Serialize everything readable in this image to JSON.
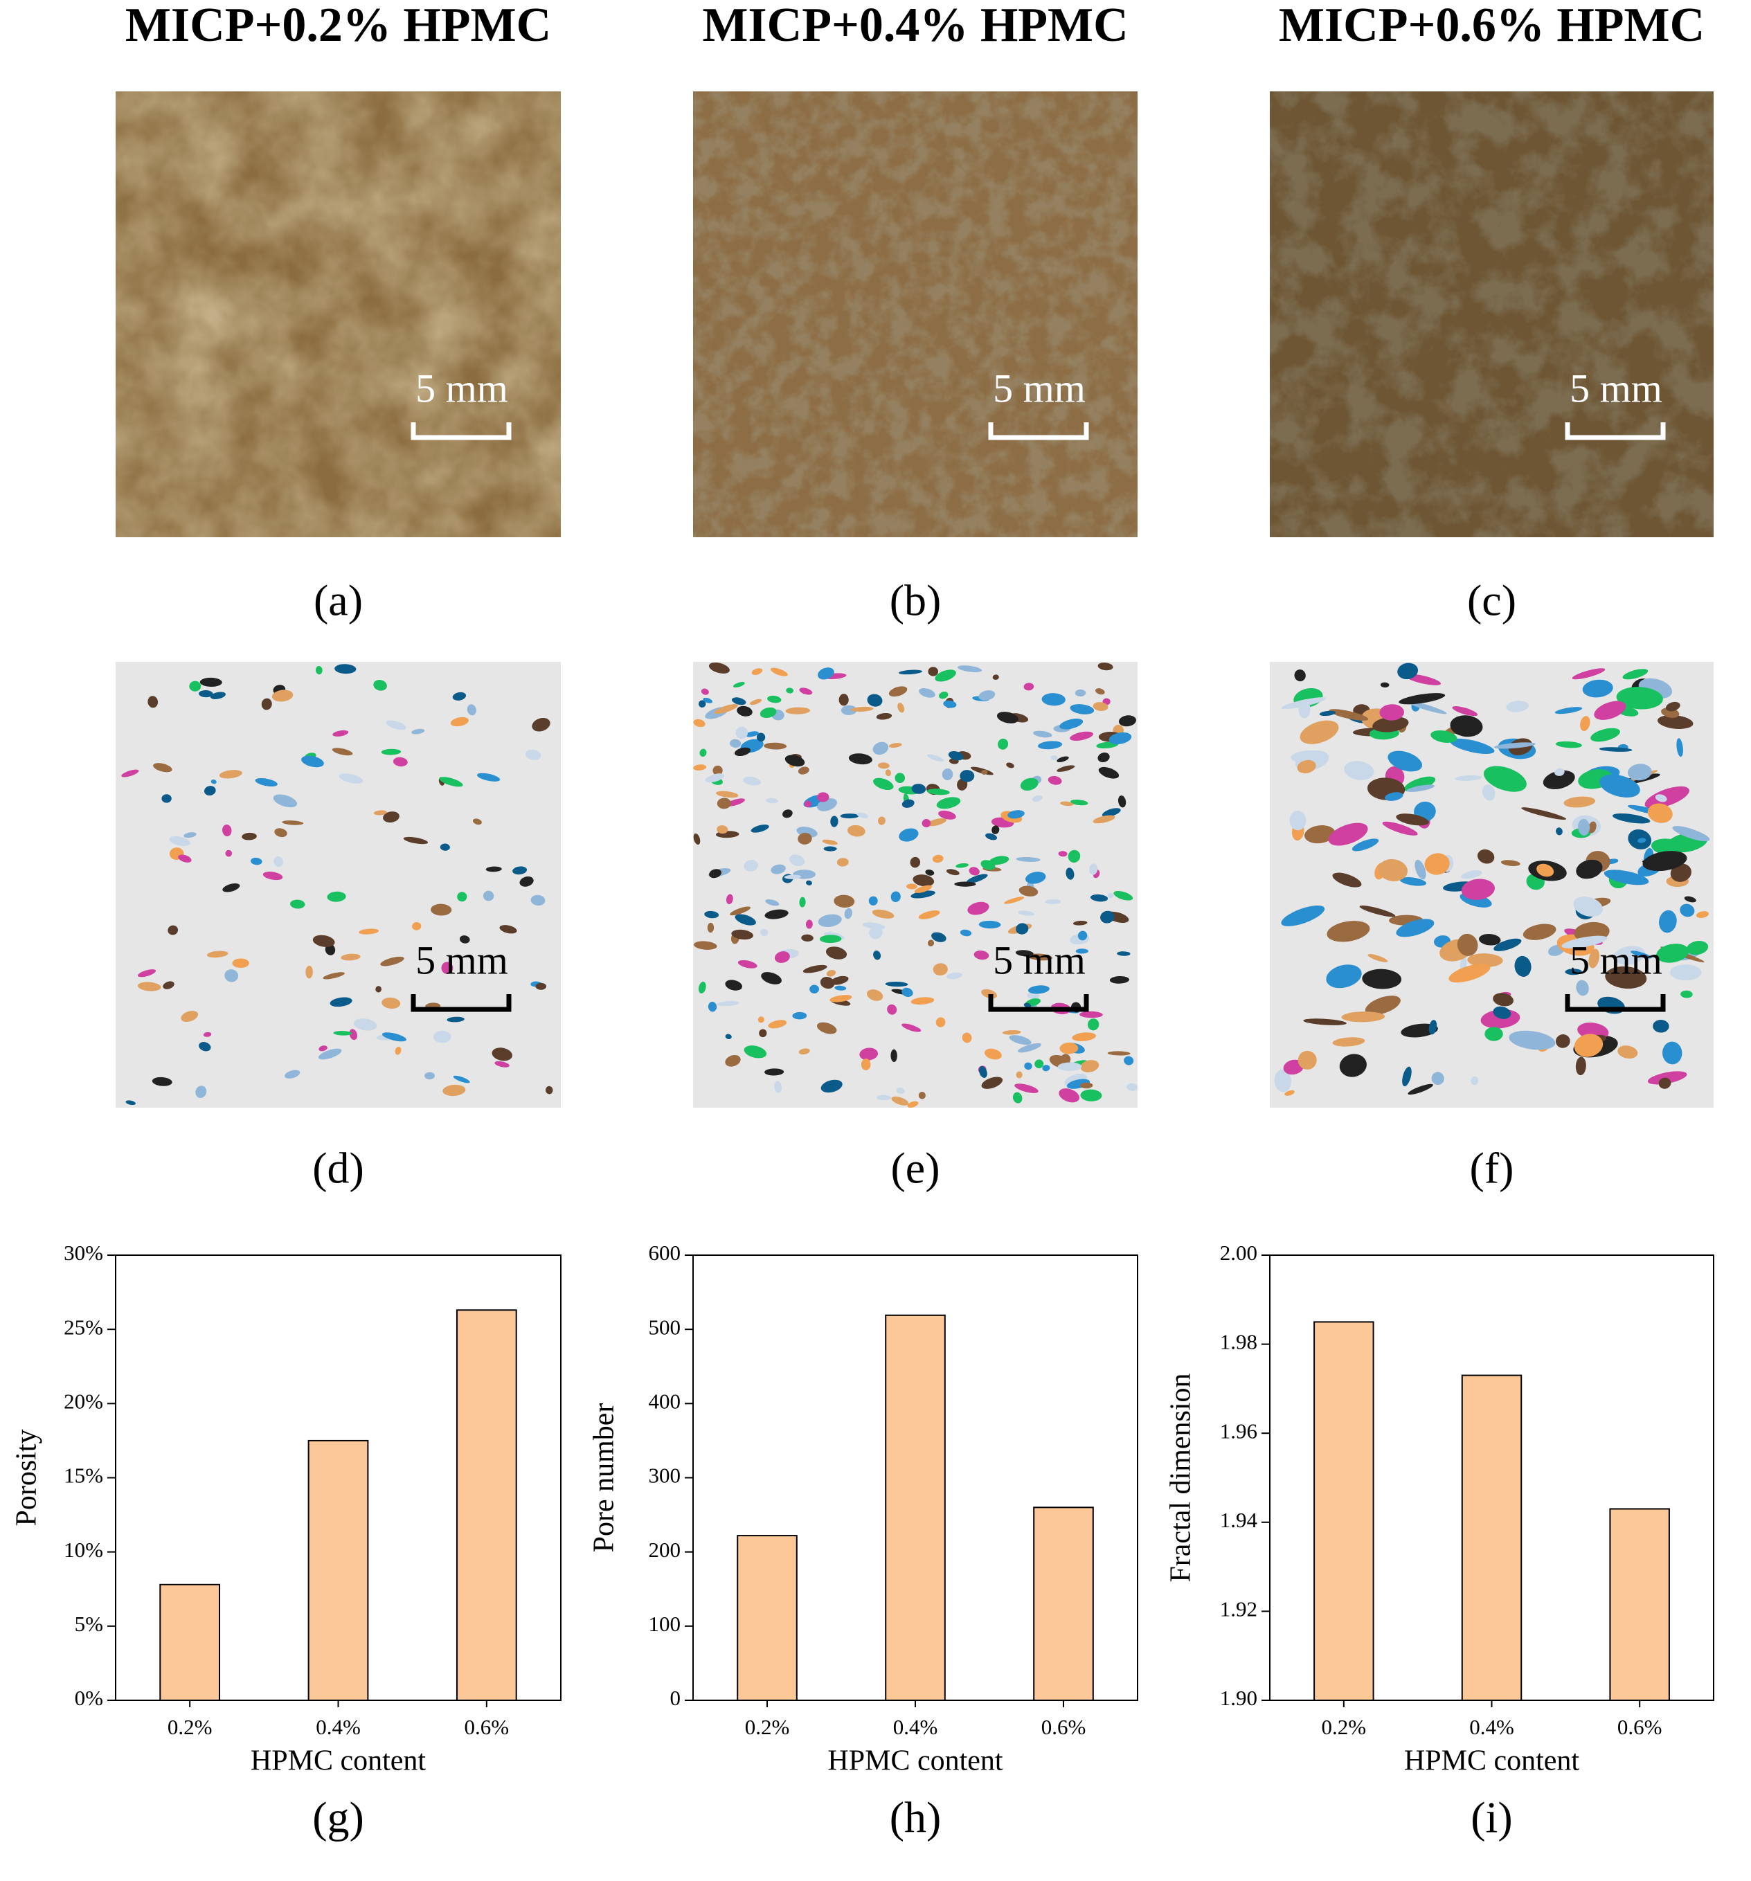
{
  "titles": [
    "MICP+0.2% HPMC",
    "MICP+0.4% HPMC",
    "MICP+0.6% HPMC"
  ],
  "panel_labels": [
    "(a)",
    "(b)",
    "(c)",
    "(d)",
    "(e)",
    "(f)",
    "(g)",
    "(h)",
    "(i)"
  ],
  "scale_bars": [
    "5 mm",
    "5 mm",
    "5 mm",
    "5 mm",
    "5 mm",
    "5 mm"
  ],
  "chart_data": [
    {
      "type": "bar",
      "categories": [
        "0.2%",
        "0.4%",
        "0.6%"
      ],
      "values": [
        7.8,
        17.5,
        26.3
      ],
      "color": "#fdc897",
      "xlabel": "HPMC content",
      "ylabel": "Porosity",
      "ylim": [
        0,
        30
      ],
      "yticks": [
        {
          "value": 0,
          "label": "0%"
        },
        {
          "value": 5,
          "label": "5%"
        },
        {
          "value": 10,
          "label": "10%"
        },
        {
          "value": 15,
          "label": "15%"
        },
        {
          "value": 20,
          "label": "20%"
        },
        {
          "value": 25,
          "label": "25%"
        },
        {
          "value": 30,
          "label": "30%"
        }
      ]
    },
    {
      "type": "bar",
      "categories": [
        "0.2%",
        "0.4%",
        "0.6%"
      ],
      "values": [
        222,
        519,
        260
      ],
      "color": "#fdc897",
      "xlabel": "HPMC content",
      "ylabel": "Pore number",
      "ylim": [
        0,
        600
      ],
      "yticks": [
        0,
        100,
        200,
        300,
        400,
        500,
        600
      ]
    },
    {
      "type": "bar",
      "categories": [
        "0.2%",
        "0.4%",
        "0.6%"
      ],
      "values": [
        1.985,
        1.973,
        1.943
      ],
      "color": "#fdc897",
      "xlabel": "HPMC content",
      "ylabel": "Fractal dimension",
      "ylim": [
        1.9,
        2.0
      ],
      "yticks": [
        {
          "value": 1.9,
          "label": "1.90"
        },
        1.92,
        1.94,
        1.96,
        1.98,
        {
          "value": 2.0,
          "label": "2.00"
        }
      ]
    }
  ]
}
